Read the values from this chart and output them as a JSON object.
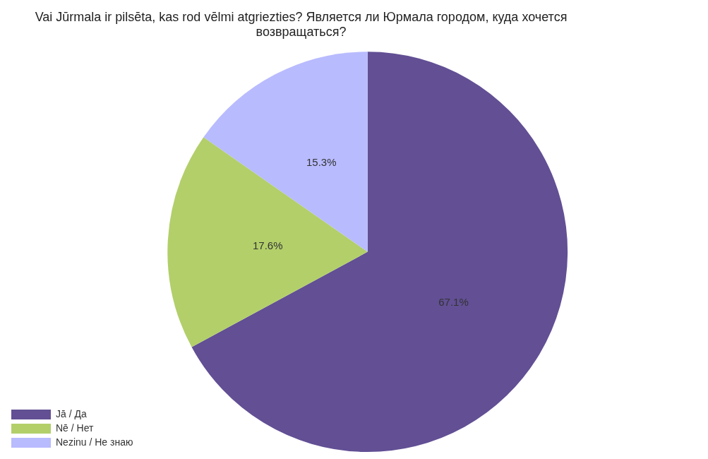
{
  "chart_data": {
    "type": "pie",
    "title": "Vai Jūrmala ir pilsēta, kas rod vēlmi atgriezties? Является ли Юрмала городом, куда хочется возвращаться?",
    "categories": [
      "Jā / Да",
      "Nē / Нет",
      "Nezinu / Не знаю"
    ],
    "values": [
      67.1,
      17.6,
      15.3
    ],
    "colors": [
      "#624f94",
      "#b2cf6a",
      "#b8bbfe"
    ],
    "value_labels": [
      "67.1%",
      "17.6%",
      "15.3%"
    ],
    "legend": "bottom left"
  }
}
